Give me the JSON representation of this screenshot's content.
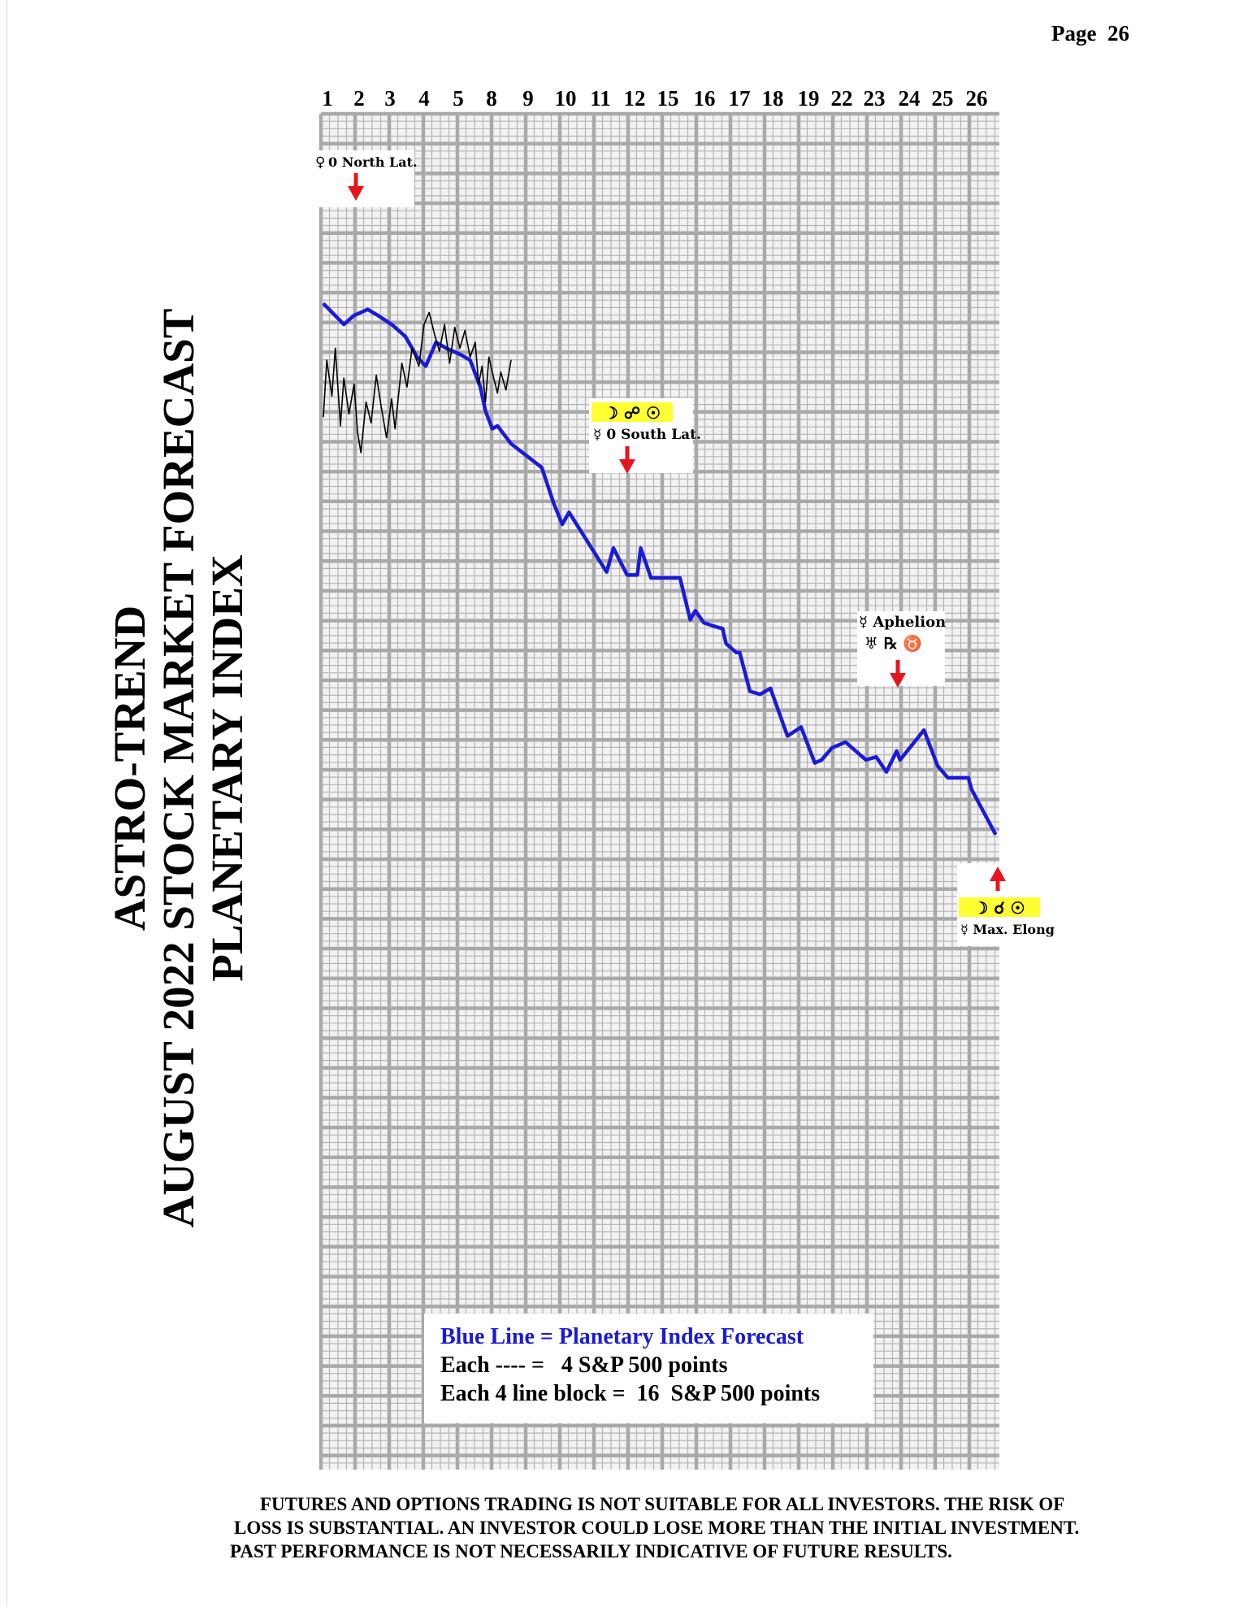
{
  "page": {
    "label": "Page",
    "number": "26"
  },
  "title_lines": [
    "ASTRO-TREND",
    "AUGUST 2022  STOCK MARKET FORECAST",
    "PLANETARY INDEX"
  ],
  "chart_data": {
    "type": "line",
    "x": [
      "1",
      "2",
      "3",
      "4",
      "5",
      "8",
      "9",
      "10",
      "11",
      "12",
      "15",
      "16",
      "17",
      "18",
      "19",
      "22",
      "23",
      "24",
      "25",
      "26"
    ],
    "xlim": [
      0,
      21
    ],
    "ylim": [
      -2.0,
      21.0
    ],
    "grid": true,
    "series": [
      {
        "color": "#1a1ad8",
        "points": [
          [
            0.0,
            18.3
          ],
          [
            0.6,
            17.6
          ],
          [
            0.9,
            17.9
          ],
          [
            1.3,
            18.1
          ],
          [
            1.6,
            17.9
          ],
          [
            2.0,
            17.6
          ],
          [
            2.4,
            17.2
          ],
          [
            2.75,
            16.5
          ],
          [
            3.0,
            16.2
          ],
          [
            3.3,
            17.0
          ],
          [
            3.6,
            16.8
          ],
          [
            4.0,
            16.6
          ],
          [
            4.3,
            16.4
          ],
          [
            4.6,
            15.5
          ],
          [
            4.75,
            14.7
          ],
          [
            4.95,
            14.1
          ],
          [
            5.1,
            14.2
          ],
          [
            5.5,
            13.6
          ],
          [
            6.4,
            12.8
          ],
          [
            6.75,
            11.6
          ],
          [
            7.0,
            10.9
          ],
          [
            7.2,
            11.3
          ],
          [
            8.3,
            9.3
          ],
          [
            8.5,
            10.1
          ],
          [
            8.9,
            9.2
          ],
          [
            9.2,
            9.2
          ],
          [
            9.3,
            10.1
          ],
          [
            9.6,
            9.1
          ],
          [
            9.9,
            9.1
          ],
          [
            10.45,
            9.1
          ],
          [
            10.75,
            7.7
          ],
          [
            10.9,
            8.0
          ],
          [
            11.15,
            7.6
          ],
          [
            11.4,
            7.5
          ],
          [
            11.7,
            7.4
          ],
          [
            11.8,
            6.9
          ],
          [
            12.1,
            6.6
          ],
          [
            12.2,
            6.6
          ],
          [
            12.5,
            5.3
          ],
          [
            12.8,
            5.2
          ],
          [
            13.1,
            5.4
          ],
          [
            13.6,
            3.8
          ],
          [
            14.0,
            4.1
          ],
          [
            14.4,
            2.9
          ],
          [
            14.6,
            3.0
          ],
          [
            14.9,
            3.4
          ],
          [
            15.3,
            3.6
          ],
          [
            15.6,
            3.3
          ],
          [
            15.9,
            3.0
          ],
          [
            16.2,
            3.1
          ],
          [
            16.5,
            2.6
          ],
          [
            16.8,
            3.3
          ],
          [
            16.9,
            3.0
          ],
          [
            17.6,
            4.0
          ],
          [
            18.0,
            2.8
          ],
          [
            18.3,
            2.4
          ],
          [
            18.9,
            2.4
          ],
          [
            19.0,
            2.0
          ],
          [
            19.7,
            0.5
          ]
        ]
      },
      {
        "color": "#000000",
        "points": [
          [
            0.0,
            14.5
          ],
          [
            0.1,
            16.4
          ],
          [
            0.25,
            15.2
          ],
          [
            0.35,
            16.8
          ],
          [
            0.5,
            14.2
          ],
          [
            0.6,
            15.8
          ],
          [
            0.75,
            14.6
          ],
          [
            0.9,
            15.6
          ],
          [
            1.0,
            14.0
          ],
          [
            1.1,
            13.3
          ],
          [
            1.25,
            15.0
          ],
          [
            1.4,
            14.3
          ],
          [
            1.55,
            15.9
          ],
          [
            1.7,
            14.8
          ],
          [
            1.85,
            13.8
          ],
          [
            2.0,
            15.1
          ],
          [
            2.1,
            14.1
          ],
          [
            2.3,
            16.3
          ],
          [
            2.45,
            15.5
          ],
          [
            2.6,
            16.8
          ],
          [
            2.8,
            16.2
          ],
          [
            2.95,
            17.6
          ],
          [
            3.1,
            18.0
          ],
          [
            3.25,
            17.3
          ],
          [
            3.4,
            16.7
          ],
          [
            3.55,
            17.6
          ],
          [
            3.7,
            16.3
          ],
          [
            3.85,
            17.5
          ],
          [
            4.0,
            16.8
          ],
          [
            4.15,
            17.4
          ],
          [
            4.3,
            16.5
          ],
          [
            4.45,
            17.0
          ],
          [
            4.55,
            15.6
          ],
          [
            4.65,
            16.2
          ],
          [
            4.75,
            15.0
          ],
          [
            4.85,
            16.5
          ],
          [
            4.95,
            16.0
          ],
          [
            5.1,
            15.3
          ],
          [
            5.2,
            16.0
          ],
          [
            5.35,
            15.4
          ],
          [
            5.5,
            16.4
          ]
        ]
      }
    ],
    "annotations": [
      {
        "symbols": "♀",
        "text": "0 North Lat.",
        "x": 1.0,
        "arrow": "down"
      },
      {
        "symbols": "☽ ☍ ☉",
        "text": "☿ 0 South Lat.",
        "x": 8.8,
        "arrow": "down"
      },
      {
        "symbols": "♅  ℞  ♉",
        "text": "☿ Aphelion",
        "x": 16.7,
        "arrow": "down"
      },
      {
        "symbols": "☽ ☌ ☉",
        "text": "☿ Max. Elong",
        "x": 19.7,
        "arrow": "up"
      }
    ],
    "legend": {
      "placement": "bottom-center",
      "lines": [
        "Blue Line = Planetary Index Forecast",
        "Each ---- =   4 S&P 500 points",
        "Each 4 line block =  16  S&P 500 points"
      ]
    }
  },
  "disclaimer": [
    "FUTURES AND OPTIONS TRADING IS NOT SUITABLE FOR ALL INVESTORS.  THE RISK OF",
    "LOSS IS SUBSTANTIAL.  AN INVESTOR COULD LOSE MORE THAN THE INITIAL INVESTMENT.",
    "PAST PERFORMANCE IS NOT NECESSARILY INDICATIVE OF FUTURE RESULTS."
  ]
}
